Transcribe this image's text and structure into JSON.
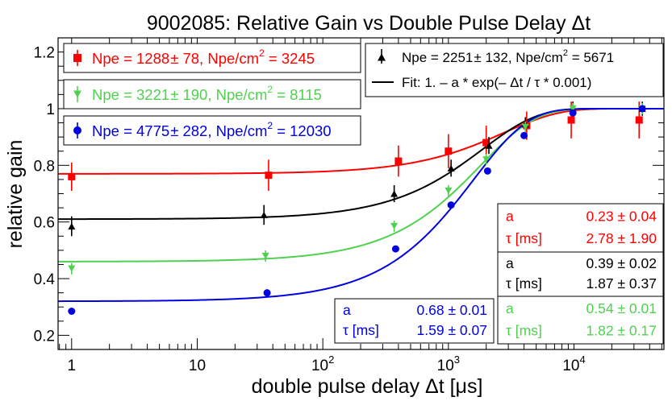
{
  "chart_data": {
    "type": "scatter",
    "title": "9002085:  Relative Gain vs Double Pulse Delay Δt",
    "xlabel": "double pulse delay Δt  [μs]",
    "ylabel": "relative gain",
    "xscale": "log",
    "xlim": [
      0.78,
      52000
    ],
    "ylim": [
      0.15,
      1.25
    ],
    "x_ticks": [
      {
        "value": 1,
        "label": "1"
      },
      {
        "value": 10,
        "label": "10"
      },
      {
        "value": 100,
        "label": "10",
        "exp": "2"
      },
      {
        "value": 1000,
        "label": "10",
        "exp": "3"
      },
      {
        "value": 10000,
        "label": "10",
        "exp": "4"
      }
    ],
    "y_ticks": [
      {
        "value": 0.2,
        "label": "0.2"
      },
      {
        "value": 0.4,
        "label": "0.4"
      },
      {
        "value": 0.6,
        "label": "0.6"
      },
      {
        "value": 0.8,
        "label": "0.8"
      },
      {
        "value": 1.0,
        "label": "1"
      },
      {
        "value": 1.2,
        "label": "1.2"
      }
    ],
    "series": [
      {
        "name": "red",
        "color": "#ff0000",
        "marker": "square",
        "legend_pre": "Npe = 1288",
        "legend_mid": "78, Npe/cm",
        "legend_post": " = 3245",
        "fit": {
          "a": 0.23,
          "tau_ms": 2.78
        },
        "points": [
          {
            "x": 1,
            "y": 0.76,
            "err": 0.05
          },
          {
            "x": 37,
            "y": 0.765,
            "err": 0.055
          },
          {
            "x": 400,
            "y": 0.815,
            "err": 0.055
          },
          {
            "x": 1000,
            "y": 0.85,
            "err": 0.06
          },
          {
            "x": 2000,
            "y": 0.88,
            "err": 0.06
          },
          {
            "x": 4200,
            "y": 0.94,
            "err": 0.05
          },
          {
            "x": 9500,
            "y": 0.96,
            "err": 0.065
          },
          {
            "x": 33000,
            "y": 0.96,
            "err": 0.065
          }
        ],
        "params": {
          "a_label": "a",
          "a_val": "0.23",
          "a_err": "0.04",
          "tau_label": "τ  [ms]",
          "tau_val": "2.78",
          "tau_err": "1.90"
        }
      },
      {
        "name": "black",
        "color": "#000000",
        "marker": "triangle-up",
        "legend_pre": "Npe = 2251",
        "legend_mid": "132, Npe/cm",
        "legend_post": " = 5671",
        "fit": {
          "a": 0.39,
          "tau_ms": 1.87
        },
        "points": [
          {
            "x": 1,
            "y": 0.585,
            "err": 0.035
          },
          {
            "x": 34,
            "y": 0.625,
            "err": 0.035
          },
          {
            "x": 370,
            "y": 0.7,
            "err": 0.03
          },
          {
            "x": 1050,
            "y": 0.79,
            "err": 0.03
          },
          {
            "x": 2100,
            "y": 0.87,
            "err": 0.03
          },
          {
            "x": 4100,
            "y": 0.945,
            "err": 0.025
          },
          {
            "x": 9800,
            "y": 1.0,
            "err": 0.025
          },
          {
            "x": 35000,
            "y": 1.0,
            "err": 0.025
          }
        ],
        "params": {
          "a_label": "a",
          "a_val": "0.39",
          "a_err": "0.02",
          "tau_label": "τ  [ms]",
          "tau_val": "1.87",
          "tau_err": "0.37"
        }
      },
      {
        "name": "green",
        "color": "#4fd14f",
        "marker": "triangle-down",
        "legend_pre": "Npe = 3221",
        "legend_mid": "190, Npe/cm",
        "legend_post": " = 8115",
        "fit": {
          "a": 0.54,
          "tau_ms": 1.82
        },
        "points": [
          {
            "x": 1,
            "y": 0.435,
            "err": 0.02
          },
          {
            "x": 35,
            "y": 0.48,
            "err": 0.02
          },
          {
            "x": 370,
            "y": 0.585,
            "err": 0.02
          },
          {
            "x": 1000,
            "y": 0.71,
            "err": 0.02
          },
          {
            "x": 2000,
            "y": 0.82,
            "err": 0.02
          },
          {
            "x": 4100,
            "y": 0.935,
            "err": 0.02
          },
          {
            "x": 9800,
            "y": 1.0,
            "err": 0.02
          },
          {
            "x": 35000,
            "y": 1.0,
            "err": 0.02
          }
        ],
        "params": {
          "a_label": "a",
          "a_val": "0.54",
          "a_err": "0.01",
          "tau_label": "τ  [ms]",
          "tau_val": "1.82",
          "tau_err": "0.17"
        }
      },
      {
        "name": "blue",
        "color": "#0000e0",
        "marker": "circle",
        "legend_pre": "Npe = 4775",
        "legend_mid": "282, Npe/cm",
        "legend_post": " = 12030",
        "fit": {
          "a": 0.68,
          "tau_ms": 1.59
        },
        "points": [
          {
            "x": 1,
            "y": 0.285,
            "err": 0.0
          },
          {
            "x": 36,
            "y": 0.35,
            "err": 0.0
          },
          {
            "x": 380,
            "y": 0.505,
            "err": 0.0
          },
          {
            "x": 1050,
            "y": 0.66,
            "err": 0.0
          },
          {
            "x": 2050,
            "y": 0.78,
            "err": 0.0
          },
          {
            "x": 4000,
            "y": 0.905,
            "err": 0.0
          },
          {
            "x": 9800,
            "y": 0.985,
            "err": 0.0
          },
          {
            "x": 35000,
            "y": 1.0,
            "err": 0.0
          }
        ],
        "params": {
          "a_label": "a",
          "a_val": "0.68",
          "a_err": "0.01",
          "tau_label": "τ  [ms]",
          "tau_val": "1.59",
          "tau_err": "0.07"
        }
      }
    ],
    "fit_legend": "Fit:  1. – a * exp(– Δt / τ * 0.001)",
    "pm": "±",
    "sup2": "2"
  }
}
